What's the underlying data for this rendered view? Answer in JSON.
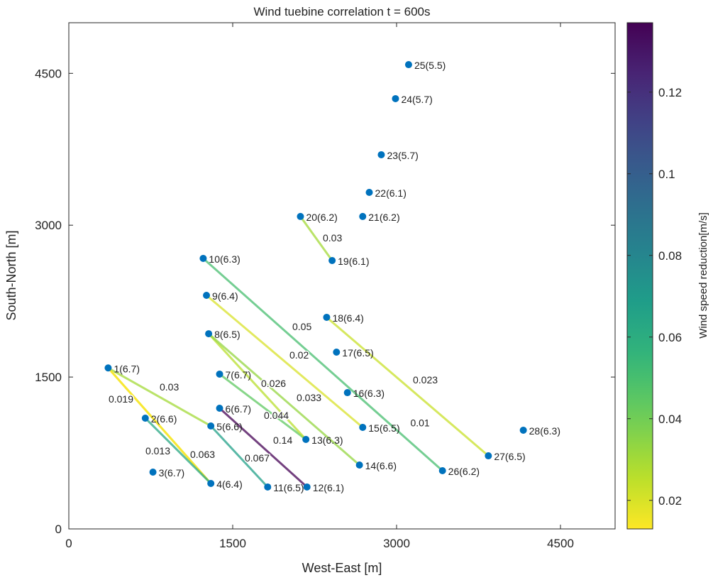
{
  "chart_data": {
    "type": "scatter",
    "title": "Wind tuebine correlation t = 600s",
    "xlabel": "West-East [m]",
    "ylabel": "South-North [m]",
    "xlim": [
      0,
      5000
    ],
    "ylim": [
      0,
      5000
    ],
    "xticks": [
      "0",
      "1500",
      "3000",
      "4500"
    ],
    "yticks": [
      "0",
      "1500",
      "3000",
      "4500"
    ],
    "grid": false,
    "point_color": "#0072BD",
    "turbines": [
      {
        "id": 1,
        "x": 360,
        "y": 1590,
        "label": "1(6.7)"
      },
      {
        "id": 2,
        "x": 700,
        "y": 1094,
        "label": "2(6.6)"
      },
      {
        "id": 3,
        "x": 770,
        "y": 561,
        "label": "3(6.7)"
      },
      {
        "id": 4,
        "x": 1300,
        "y": 449,
        "label": "4(6.4)"
      },
      {
        "id": 5,
        "x": 1300,
        "y": 1017,
        "label": "5(6.6)"
      },
      {
        "id": 6,
        "x": 1380,
        "y": 1192,
        "label": "6(6.7)"
      },
      {
        "id": 7,
        "x": 1380,
        "y": 1529,
        "label": "7(6.7)"
      },
      {
        "id": 8,
        "x": 1280,
        "y": 1928,
        "label": "8(6.5)"
      },
      {
        "id": 9,
        "x": 1260,
        "y": 2307,
        "label": "9(6.4)"
      },
      {
        "id": 10,
        "x": 1230,
        "y": 2672,
        "label": "10(6.3)"
      },
      {
        "id": 11,
        "x": 1820,
        "y": 414,
        "label": "11(6.5)"
      },
      {
        "id": 12,
        "x": 2180,
        "y": 414,
        "label": "12(6.1)"
      },
      {
        "id": 13,
        "x": 2170,
        "y": 884,
        "label": "13(6.3)"
      },
      {
        "id": 14,
        "x": 2660,
        "y": 631,
        "label": "14(6.6)"
      },
      {
        "id": 15,
        "x": 2690,
        "y": 1003,
        "label": "15(6.5)"
      },
      {
        "id": 16,
        "x": 2550,
        "y": 1346,
        "label": "16(6.3)"
      },
      {
        "id": 17,
        "x": 2450,
        "y": 1746,
        "label": "17(6.5)"
      },
      {
        "id": 18,
        "x": 2360,
        "y": 2090,
        "label": "18(6.4)"
      },
      {
        "id": 19,
        "x": 2410,
        "y": 2651,
        "label": "19(6.1)"
      },
      {
        "id": 20,
        "x": 2120,
        "y": 3086,
        "label": "20(6.2)"
      },
      {
        "id": 21,
        "x": 2690,
        "y": 3086,
        "label": "21(6.2)"
      },
      {
        "id": 22,
        "x": 2750,
        "y": 3324,
        "label": "22(6.1)"
      },
      {
        "id": 23,
        "x": 2860,
        "y": 3696,
        "label": "23(5.7)"
      },
      {
        "id": 24,
        "x": 2990,
        "y": 4250,
        "label": "24(5.7)"
      },
      {
        "id": 25,
        "x": 3110,
        "y": 4586,
        "label": "25(5.5)"
      },
      {
        "id": 26,
        "x": 3420,
        "y": 575,
        "label": "26(6.2)"
      },
      {
        "id": 27,
        "x": 3840,
        "y": 722,
        "label": "27(6.5)"
      },
      {
        "id": 28,
        "x": 4160,
        "y": 975,
        "label": "28(6.3)"
      }
    ],
    "wake_links": [
      {
        "from": 1,
        "to": 4,
        "value": 0.019,
        "label": "0.019"
      },
      {
        "from": 1,
        "to": 5,
        "value": 0.03,
        "label": "0.03"
      },
      {
        "from": 1,
        "to": 4,
        "value": 0.013,
        "label": "0.013"
      },
      {
        "from": 2,
        "to": 4,
        "value": 0.063,
        "label": "0.063"
      },
      {
        "from": 5,
        "to": 11,
        "value": 0.067,
        "label": "0.067"
      },
      {
        "from": 6,
        "to": 12,
        "value": 0.14,
        "label": "0.14"
      },
      {
        "from": 7,
        "to": 13,
        "value": 0.044,
        "label": "0.044"
      },
      {
        "from": 8,
        "to": 13,
        "value": 0.026,
        "label": "0.026"
      },
      {
        "from": 8,
        "to": 14,
        "value": 0.033,
        "label": "0.033"
      },
      {
        "from": 9,
        "to": 15,
        "value": 0.02,
        "label": "0.02"
      },
      {
        "from": 10,
        "to": 26,
        "value": 0.05,
        "label": "0.05"
      },
      {
        "from": 18,
        "to": 27,
        "value": 0.023,
        "label": "0.023"
      },
      {
        "from": 20,
        "to": 19,
        "value": 0.03,
        "label": "0.03"
      }
    ],
    "annotations": [
      {
        "text": "0.01",
        "x": 2860,
        "y": 1000
      }
    ],
    "colorbar": {
      "label": "Wind speed reduction[m/s]",
      "colormap": "viridis (yellow = low, purple = high)",
      "range": [
        0.013,
        0.137
      ],
      "ticks": [
        "0.02",
        "0.04",
        "0.06",
        "0.08",
        "0.1",
        "0.12"
      ]
    }
  }
}
